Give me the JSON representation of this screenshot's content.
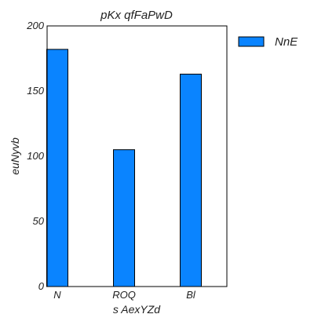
{
  "chart_data": {
    "type": "bar",
    "title": "pKx qfFaPwD",
    "xlabel": "s AexYZd",
    "ylabel": "euNyvb",
    "categories": [
      "N",
      "ROQ",
      "Bl"
    ],
    "series": [
      {
        "name": "NnE",
        "values": [
          182,
          105,
          163
        ],
        "color": "#0a84ff"
      }
    ],
    "ylim": [
      0,
      200
    ],
    "yticks": [
      0,
      50,
      100,
      150,
      200
    ],
    "grid": false,
    "legend_position": "outside-top-right"
  }
}
